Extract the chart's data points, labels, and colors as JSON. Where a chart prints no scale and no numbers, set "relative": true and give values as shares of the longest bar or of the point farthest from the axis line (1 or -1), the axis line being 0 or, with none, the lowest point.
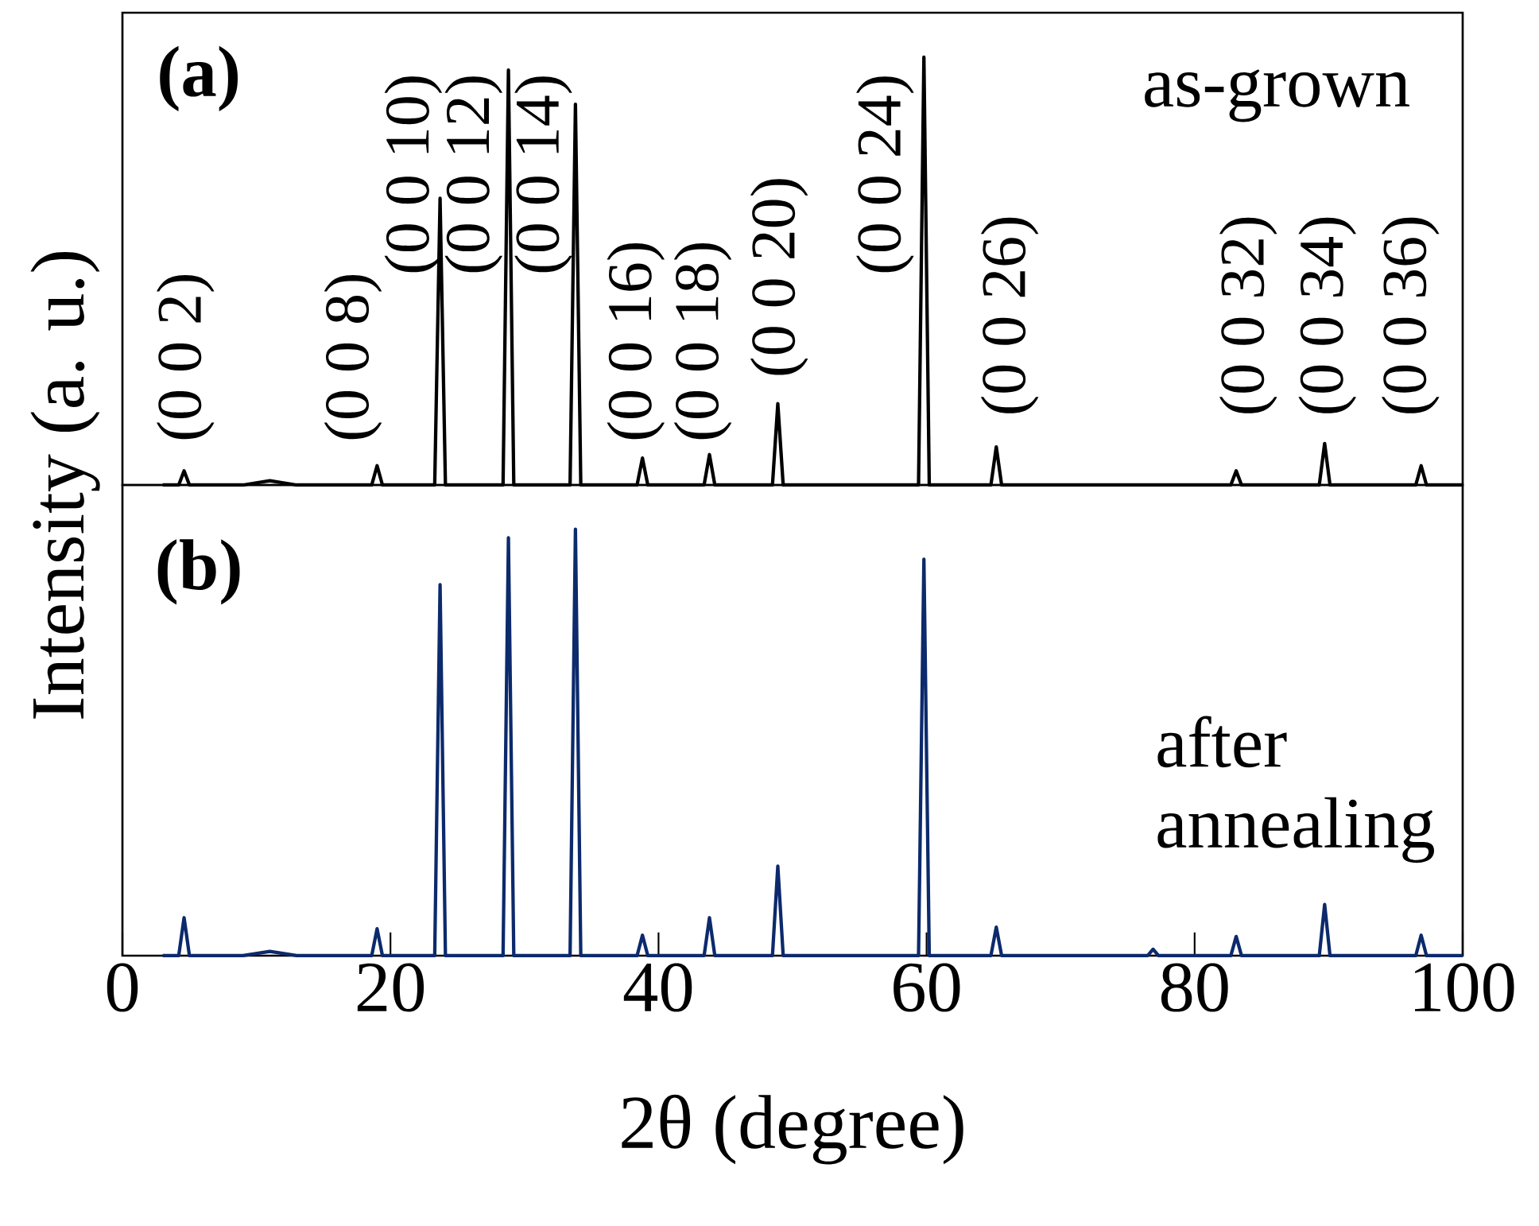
{
  "chart_data": [
    {
      "type": "line",
      "relative": true,
      "ylabel": "Intensity (a. u.)",
      "xlim": [
        0,
        100
      ],
      "tick_labels": false,
      "annotations": [
        "(a)",
        "as-grown",
        "(0 0 2)",
        "(0 0 8)",
        "(0 0 10)",
        "(0 0 12)",
        "(0 0 14)",
        "(0 0 16)",
        "(0 0 18)",
        "(0 0 20)",
        "(0 0 24)",
        "(0 0 26)",
        "(0 0 32)",
        "(0 0 34)",
        "(0 0 36)"
      ],
      "series": [
        {
          "color": "#000000",
          "x": [
            3,
            4.2,
            4.6,
            5.0,
            9,
            11,
            13,
            18.6,
            19.0,
            19.4,
            23.3,
            23.7,
            24.1,
            28.4,
            28.8,
            29.2,
            33.4,
            33.8,
            34.2,
            38.4,
            38.8,
            39.2,
            43.4,
            43.8,
            44.2,
            48.5,
            48.9,
            49.3,
            59.4,
            59.8,
            60.2,
            64.8,
            65.2,
            65.6,
            82.7,
            83.1,
            83.5,
            89.3,
            89.7,
            90.1,
            96.5,
            96.9,
            97.3,
            100
          ],
          "values": [
            0,
            0,
            0.033,
            0,
            0,
            0.01,
            0,
            0,
            0.045,
            0,
            0,
            0.67,
            0,
            0,
            0.97,
            0,
            0,
            0.89,
            0,
            0,
            0.063,
            0,
            0,
            0.071,
            0,
            0,
            0.19,
            0,
            0,
            1,
            0,
            0,
            0.089,
            0,
            0,
            0.033,
            0,
            0,
            0.097,
            0,
            0,
            0.045,
            0,
            0
          ]
        }
      ]
    },
    {
      "type": "line",
      "relative": true,
      "xlabel": "2θ (degree)",
      "xlim": [
        0,
        100
      ],
      "xticks": [
        0,
        20,
        40,
        60,
        80,
        100
      ],
      "tick_labels": "x",
      "annotations": [
        "(b)",
        "after annealing"
      ],
      "series": [
        {
          "color": "#0c2a6c",
          "x": [
            3,
            4.2,
            4.6,
            5.0,
            9,
            11,
            13,
            18.6,
            19.0,
            19.4,
            23.3,
            23.7,
            24.1,
            28.4,
            28.8,
            29.2,
            33.4,
            33.8,
            34.2,
            38.4,
            38.8,
            39.2,
            43.4,
            43.8,
            44.2,
            48.5,
            48.9,
            49.3,
            59.4,
            59.8,
            60.2,
            64.8,
            65.2,
            65.6,
            76.5,
            76.9,
            77.3,
            82.7,
            83.1,
            83.5,
            89.3,
            89.7,
            90.1,
            96.5,
            96.9,
            97.3,
            100
          ],
          "values": [
            0,
            0,
            0.089,
            0,
            0,
            0.01,
            0,
            0,
            0.063,
            0,
            0,
            0.87,
            0,
            0,
            0.98,
            0,
            0,
            1,
            0,
            0,
            0.048,
            0,
            0,
            0.089,
            0,
            0,
            0.21,
            0,
            0,
            0.93,
            0,
            0,
            0.067,
            0,
            0,
            0.015,
            0,
            0,
            0.045,
            0,
            0,
            0.12,
            0,
            0,
            0.048,
            0,
            0
          ]
        }
      ]
    }
  ]
}
